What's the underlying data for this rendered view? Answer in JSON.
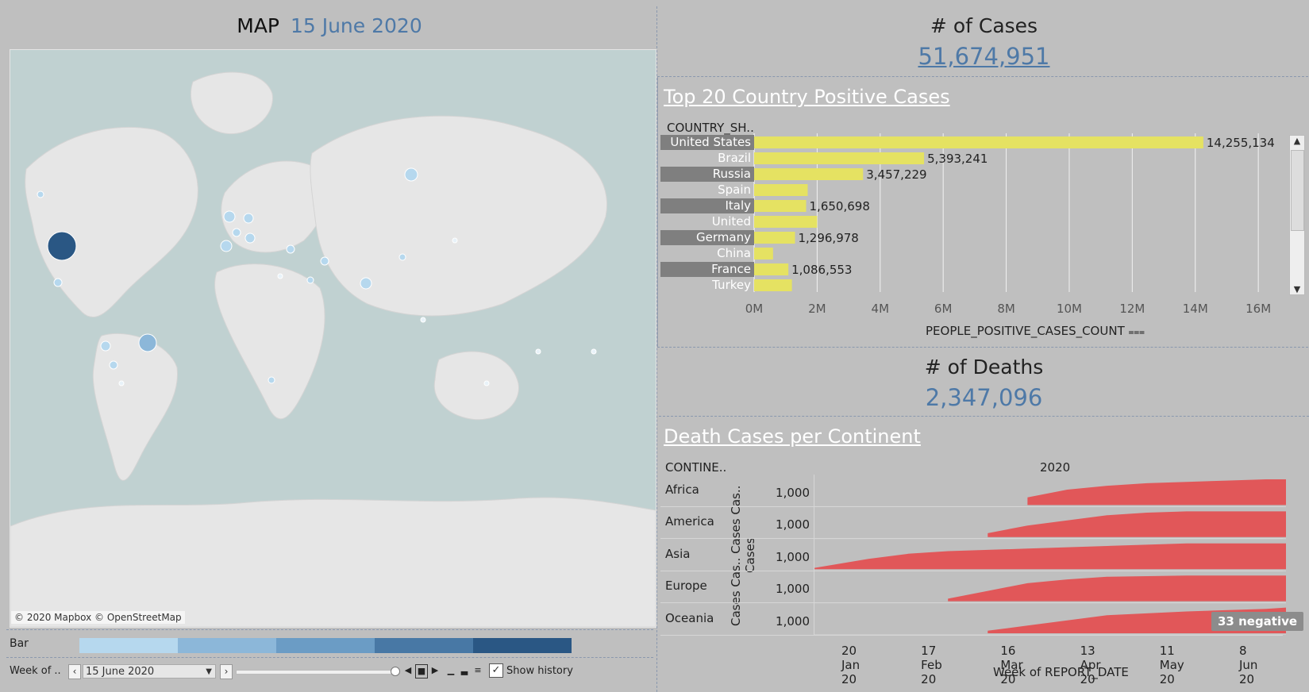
{
  "map": {
    "title": "MAP",
    "date": "15 June 2020",
    "copyright": "© 2020 Mapbox © OpenStreetMap"
  },
  "legend": {
    "label": "Bar",
    "colors": [
      "#b6d8ee",
      "#8cb7d9",
      "#6b9cc5",
      "#4878a5",
      "#2a5784"
    ]
  },
  "playback": {
    "label": "Week of ..",
    "value": "15 June 2020",
    "show_history_label": "Show history",
    "show_history_checked": "✓"
  },
  "cases": {
    "title": "# of Cases",
    "value": "51,674,951"
  },
  "deaths": {
    "title": "# of Deaths",
    "value": "2,347,096"
  },
  "top20": {
    "title": "Top 20 Country Positive Cases",
    "dimension_header": "COUNTRY_SH..",
    "axis_title": "PEOPLE_POSITIVE_CASES_COUNT",
    "sort_icon": "sort-icon"
  },
  "continents": {
    "title": "Death Cases per Continent",
    "dimension_header": "CONTINE..",
    "year_header": "2020",
    "measure_axis_title": "Cases Cas.. Cases Cas.. Cases",
    "x_axis_title": "Week of REPORT_DATE",
    "negative_badge": "33 negative"
  },
  "chart_data": [
    {
      "type": "bar",
      "title": "Top 20 Country Positive Cases",
      "xlabel": "PEOPLE_POSITIVE_CASES_COUNT",
      "ylabel": "COUNTRY_SH..",
      "categories": [
        "United States",
        "Brazil",
        "Russia",
        "Spain",
        "Italy",
        "United Kingdom",
        "Germany",
        "China",
        "France",
        "Turkey"
      ],
      "values": [
        14255134,
        5393241,
        3457229,
        1700000,
        1650698,
        2000000,
        1296978,
        600000,
        1086553,
        1200000
      ],
      "labels": [
        "14,255,134",
        "5,393,241",
        "3,457,229",
        "",
        "1,650,698",
        "",
        "1,296,978",
        "",
        "1,086,553",
        ""
      ],
      "xlim": [
        0,
        16500000
      ],
      "xticks": [
        "0M",
        "2M",
        "4M",
        "6M",
        "8M",
        "10M",
        "12M",
        "14M",
        "16M"
      ],
      "xtick_values": [
        0,
        2000000,
        4000000,
        6000000,
        8000000,
        10000000,
        12000000,
        14000000,
        16000000
      ],
      "grid": true
    },
    {
      "type": "area",
      "title": "Death Cases per Continent",
      "xlabel": "Week of REPORT_DATE",
      "ylabel": "Cases Cas.. Cases Cas.. Cases",
      "x_range": [
        "2020-01-01",
        "2020-06-15"
      ],
      "xticks": [
        "20 Jan 20",
        "17 Feb 20",
        "16 Mar 20",
        "13 Apr 20",
        "11 May 20",
        "8 Jun 20"
      ],
      "xtick_dates": [
        "2020-01-20",
        "2020-02-17",
        "2020-03-16",
        "2020-04-13",
        "2020-05-11",
        "2020-06-08"
      ],
      "ytick": "1,000",
      "color": "#e15759",
      "series": [
        {
          "name": "Africa",
          "x": [
            "2020-03-16",
            "2020-03-30",
            "2020-04-13",
            "2020-04-27",
            "2020-05-11",
            "2020-05-25",
            "2020-06-08",
            "2020-06-15"
          ],
          "values": [
            0.3,
            0.6,
            0.75,
            0.85,
            0.9,
            0.95,
            1.0,
            1.0
          ]
        },
        {
          "name": "America",
          "x": [
            "2020-03-02",
            "2020-03-16",
            "2020-03-30",
            "2020-04-13",
            "2020-04-27",
            "2020-05-11",
            "2020-06-08",
            "2020-06-15"
          ],
          "values": [
            0.15,
            0.45,
            0.65,
            0.85,
            0.95,
            1.0,
            1.0,
            1.0
          ]
        },
        {
          "name": "Asia",
          "x": [
            "2020-01-01",
            "2020-01-20",
            "2020-02-03",
            "2020-02-17",
            "2020-03-16",
            "2020-04-13",
            "2020-05-11",
            "2020-06-15"
          ],
          "values": [
            0.05,
            0.4,
            0.6,
            0.7,
            0.8,
            0.9,
            1.0,
            1.0
          ]
        },
        {
          "name": "Europe",
          "x": [
            "2020-02-17",
            "2020-03-02",
            "2020-03-16",
            "2020-03-30",
            "2020-04-13",
            "2020-05-11",
            "2020-06-08",
            "2020-06-15"
          ],
          "values": [
            0.1,
            0.4,
            0.7,
            0.85,
            0.95,
            1.0,
            1.0,
            1.0
          ]
        },
        {
          "name": "Oceania",
          "x": [
            "2020-03-02",
            "2020-03-16",
            "2020-03-30",
            "2020-04-13",
            "2020-05-11",
            "2020-06-08",
            "2020-06-15"
          ],
          "values": [
            0.1,
            0.3,
            0.5,
            0.7,
            0.85,
            0.95,
            1.0
          ]
        }
      ]
    }
  ]
}
